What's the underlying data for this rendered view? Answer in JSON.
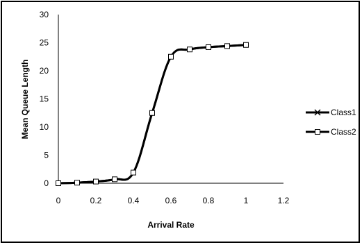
{
  "chart_data": {
    "type": "line",
    "title": "",
    "xlabel": "Arrival Rate",
    "ylabel": "Mean Queue Length",
    "xlim": [
      0,
      1.2
    ],
    "ylim": [
      0,
      30
    ],
    "xticks": [
      "0",
      "0.2",
      "0.4",
      "0.6",
      "0.8",
      "1",
      "1.2"
    ],
    "yticks": [
      "0",
      "5",
      "10",
      "15",
      "20",
      "25",
      "30"
    ],
    "grid": false,
    "legend_position": "right",
    "x": [
      0,
      0.1,
      0.2,
      0.3,
      0.4,
      0.5,
      0.6,
      0.7,
      0.8,
      0.9,
      1.0
    ],
    "series": [
      {
        "name": "Class1",
        "marker": "x",
        "color": "#000000",
        "values": [
          0,
          0.1,
          0.3,
          0.7,
          1.9,
          12.5,
          22.5,
          23.8,
          24.2,
          24.4,
          24.6
        ]
      },
      {
        "name": "Class2",
        "marker": "square",
        "color": "#000000",
        "values": [
          0,
          0.1,
          0.3,
          0.7,
          1.9,
          12.5,
          22.5,
          23.8,
          24.2,
          24.4,
          24.6
        ]
      }
    ]
  }
}
